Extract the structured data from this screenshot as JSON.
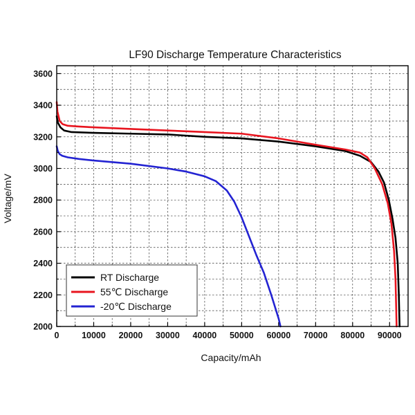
{
  "chart_data": {
    "type": "line",
    "title": "LF90 Discharge Temperature Characteristics",
    "xlabel": "Capacity/mAh",
    "ylabel": "Voltage/mV",
    "xlim": [
      0,
      95000
    ],
    "ylim": [
      2000,
      3650
    ],
    "xticks": [
      0,
      10000,
      20000,
      30000,
      40000,
      50000,
      60000,
      70000,
      80000,
      90000
    ],
    "yticks": [
      2000,
      2200,
      2400,
      2600,
      2800,
      3000,
      3200,
      3400,
      3600
    ],
    "xtick_labels": [
      "0",
      "10000",
      "20000",
      "30000",
      "40000",
      "50000",
      "60000",
      "70000",
      "80000",
      "90000"
    ],
    "ytick_labels": [
      "2000",
      "2200",
      "2400",
      "2600",
      "2800",
      "3000",
      "3200",
      "3400",
      "3600"
    ],
    "grid": true,
    "legend_position": "bottom-left",
    "series": [
      {
        "name": "RT Discharge",
        "legend_label": "RT      Discharge",
        "color": "#000000",
        "x": [
          0,
          300,
          1000,
          2000,
          4000,
          10000,
          20000,
          30000,
          40000,
          50000,
          60000,
          70000,
          78000,
          82000,
          85000,
          87000,
          88500,
          89800,
          90800,
          91600,
          92200,
          92500,
          92700
        ],
        "y": [
          3330,
          3290,
          3260,
          3240,
          3230,
          3225,
          3220,
          3215,
          3200,
          3190,
          3170,
          3140,
          3110,
          3080,
          3040,
          2980,
          2910,
          2800,
          2680,
          2560,
          2400,
          2200,
          2000
        ]
      },
      {
        "name": "55℃ Discharge",
        "legend_label": "55℃  Discharge",
        "color": "#e8141e",
        "x": [
          0,
          200,
          800,
          1600,
          3000,
          6000,
          10000,
          20000,
          30000,
          40000,
          50000,
          60000,
          70000,
          78000,
          82000,
          84000,
          86000,
          88000,
          89500,
          90500,
          91200,
          91600,
          91800,
          91900
        ],
        "y": [
          3420,
          3360,
          3300,
          3280,
          3270,
          3265,
          3260,
          3250,
          3240,
          3230,
          3220,
          3190,
          3150,
          3120,
          3100,
          3070,
          3000,
          2900,
          2780,
          2650,
          2480,
          2300,
          2100,
          2000
        ]
      },
      {
        "name": "-20℃ Discharge",
        "legend_label": "-20℃ Discharge",
        "color": "#2323d2",
        "x": [
          0,
          300,
          800,
          1500,
          3000,
          6000,
          10000,
          20000,
          30000,
          35000,
          40000,
          43000,
          46000,
          48000,
          50000,
          52000,
          54000,
          56000,
          58000,
          60000,
          60500
        ],
        "y": [
          3140,
          3110,
          3090,
          3080,
          3070,
          3060,
          3050,
          3030,
          3000,
          2980,
          2950,
          2920,
          2860,
          2790,
          2690,
          2570,
          2450,
          2340,
          2200,
          2050,
          2000
        ]
      }
    ]
  }
}
